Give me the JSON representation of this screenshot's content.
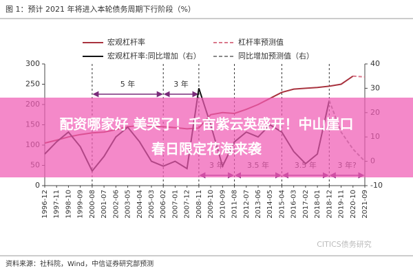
{
  "chart_data": {
    "type": "line",
    "title": "图 1：预计 2021 年将进入本轮债务周期下行阶段（%）",
    "categories": [
      "1996-12",
      "1997-11",
      "1998-10",
      "1999-09",
      "2000-08",
      "2001-07",
      "2002-06",
      "2003-05",
      "2004-04",
      "2005-03",
      "2006-02",
      "2007-01",
      "2007-12",
      "2008-11",
      "2009-10",
      "2010-09",
      "2011-08",
      "2012-07",
      "2013-06",
      "2014-05",
      "2015-04",
      "2016-03",
      "2017-02",
      "2018-01",
      "2018-12",
      "2019-11",
      "2020-10",
      "2021-09"
    ],
    "series": [
      {
        "name": "宏观杠杆率",
        "color": "#a8323e",
        "dash": false,
        "axis": "y",
        "values": [
          105,
          112,
          120,
          126,
          130,
          132,
          138,
          145,
          148,
          147,
          145,
          143,
          140,
          142,
          175,
          180,
          178,
          188,
          200,
          215,
          230,
          238,
          240,
          242,
          245,
          250,
          270,
          null
        ]
      },
      {
        "name": "杠杆率预测值",
        "color": "#d9778a",
        "dash": true,
        "axis": "y",
        "values": [
          null,
          null,
          null,
          null,
          null,
          null,
          null,
          null,
          null,
          null,
          null,
          null,
          null,
          null,
          null,
          null,
          null,
          null,
          null,
          null,
          null,
          null,
          null,
          null,
          null,
          null,
          270,
          268
        ]
      },
      {
        "name": "宏观杠杆率:同比增加（右）",
        "color": "#111111",
        "dash": false,
        "axis": "y2",
        "values": [
          3,
          8,
          12,
          6,
          -4,
          2,
          10,
          14,
          8,
          0,
          -2,
          0,
          -3,
          30,
          15,
          -2,
          8,
          12,
          10,
          15,
          12,
          4,
          -1,
          3,
          25,
          null,
          null,
          null
        ]
      },
      {
        "name": "同比增加预测值（右）",
        "color": "#888888",
        "dash": true,
        "axis": "y2",
        "values": [
          null,
          null,
          null,
          null,
          null,
          null,
          null,
          null,
          null,
          null,
          null,
          null,
          null,
          null,
          null,
          null,
          null,
          null,
          null,
          null,
          null,
          null,
          null,
          null,
          25,
          12,
          5,
          0
        ]
      }
    ],
    "ylim": [
      0,
      300
    ],
    "yticks": [
      0,
      50,
      100,
      150,
      200,
      250,
      300
    ],
    "y2lim": [
      -10,
      40
    ],
    "y2ticks": [
      -10,
      0,
      10,
      20,
      30,
      40
    ],
    "annotations": [
      "5 年",
      "3 年",
      "3 年",
      "3.5 年",
      "3.5 年",
      "3 年?"
    ],
    "source": "资料来源：社科院，Wind，中信证券研究部预测",
    "watermark": "CITICS债务研究"
  },
  "overlay": {
    "lines": [
      "配资哪家好 美哭了！千亩紫云英盛开！中山崖口",
      "春日限定花海来袭"
    ]
  }
}
